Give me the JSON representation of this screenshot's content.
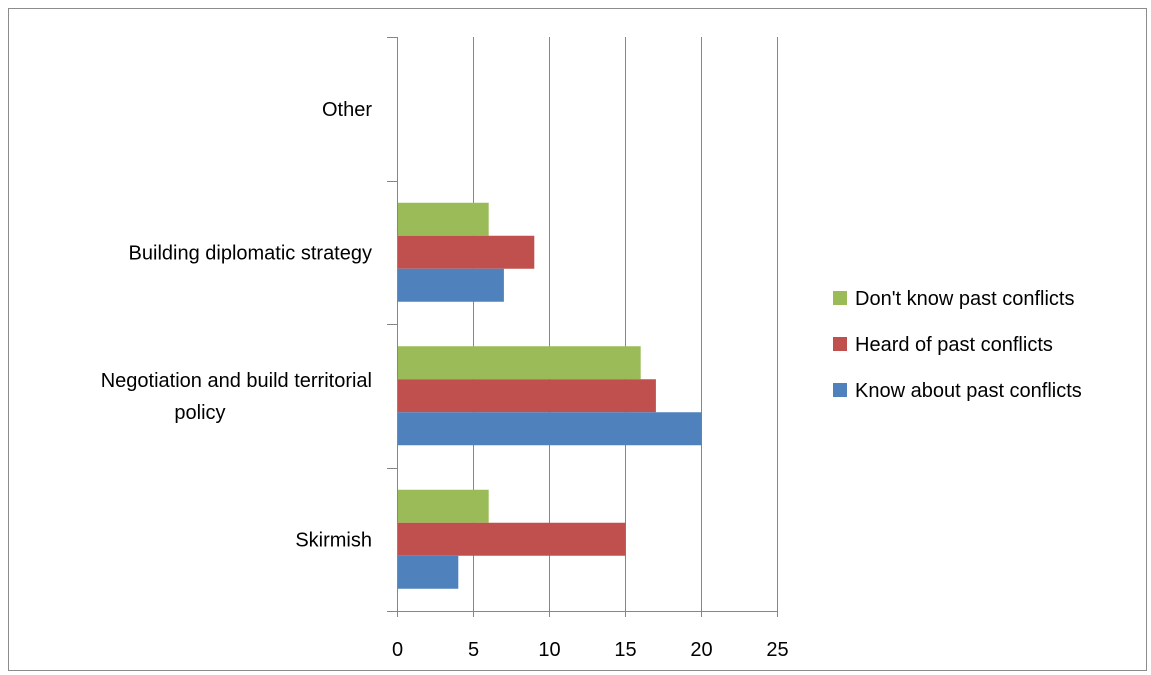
{
  "chart_data": {
    "type": "bar",
    "orientation": "horizontal",
    "title": "",
    "xlabel": "",
    "ylabel": "",
    "xlim": [
      0,
      25
    ],
    "x_ticks": [
      "0",
      "5",
      "10",
      "15",
      "20",
      "25"
    ],
    "grid": "vertical",
    "legend_position": "right",
    "categories": [
      "Other",
      "Building diplomatic strategy",
      "Negotiation and build territorial policy",
      "Skirmish"
    ],
    "category_label_lines": [
      [
        "Other"
      ],
      [
        "Building diplomatic strategy"
      ],
      [
        "Negotiation and build territorial",
        "policy"
      ],
      [
        "Skirmish"
      ]
    ],
    "series": [
      {
        "name": "Don't know past conflicts",
        "color": "#9BBB59",
        "values": [
          0,
          6,
          16,
          6
        ]
      },
      {
        "name": "Heard of past conflicts",
        "color": "#C0504D",
        "values": [
          0,
          9,
          17,
          15
        ]
      },
      {
        "name": "Know about past conflicts",
        "color": "#4F81BD",
        "values": [
          0,
          7,
          20,
          4
        ]
      }
    ]
  }
}
